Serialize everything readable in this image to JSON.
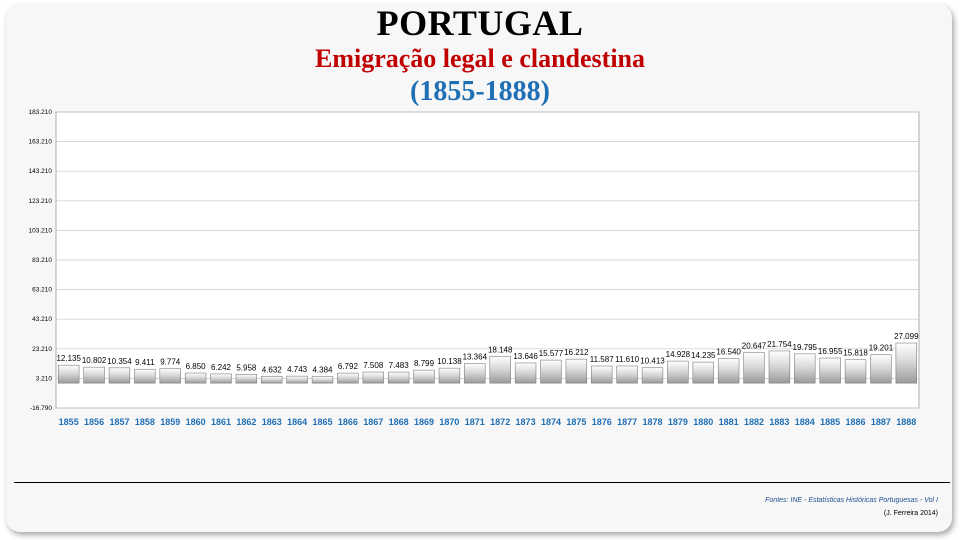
{
  "header": {
    "title": "PORTUGAL",
    "subtitle": "Emigração legal e clandestina",
    "period": "(1855-1888)"
  },
  "footer": {
    "source": "Fontes: INE - Estatísticas Históricas Portuguesas - Vol I",
    "author": "(J. Ferreira 2014)"
  },
  "colors": {
    "title": "#000000",
    "subtitle": "#c00000",
    "period": "#1f6fb5",
    "year_labels": "#1f6fb5",
    "bar_fill": "#d9d9d9",
    "bar_stroke": "#7f7f7f"
  },
  "chart_data": {
    "type": "bar",
    "categories": [
      "1855",
      "1856",
      "1857",
      "1858",
      "1859",
      "1860",
      "1861",
      "1862",
      "1863",
      "1864",
      "1865",
      "1866",
      "1867",
      "1868",
      "1869",
      "1870",
      "1871",
      "1872",
      "1873",
      "1874",
      "1875",
      "1876",
      "1877",
      "1878",
      "1879",
      "1880",
      "1881",
      "1882",
      "1883",
      "1884",
      "1885",
      "1886",
      "1887",
      "1888"
    ],
    "values": [
      12135,
      10802,
      10354,
      9411,
      9774,
      6850,
      6242,
      5958,
      4632,
      4743,
      4384,
      6792,
      7508,
      7483,
      8799,
      10138,
      13364,
      18148,
      13646,
      15577,
      16212,
      11587,
      11610,
      10413,
      14928,
      14235,
      16540,
      20647,
      21754,
      19795,
      16955,
      15818,
      19201,
      27099
    ],
    "value_labels": [
      "12.135",
      "10.802",
      "10.354",
      "9.411",
      "9.774",
      "6.850",
      "6.242",
      "5.958",
      "4.632",
      "4.743",
      "4.384",
      "6.792",
      "7.508",
      "7.483",
      "8.799",
      "10.138",
      "13.364",
      "18.148",
      "13.646",
      "15.577",
      "16.212",
      "11.587",
      "11.610",
      "10.413",
      "14.928",
      "14.235",
      "16.540",
      "20.647",
      "21.754",
      "19.795",
      "16.955",
      "15.818",
      "19.201",
      "27.099"
    ],
    "y_ticks": [
      -16790,
      3210,
      23210,
      43210,
      63210,
      83210,
      103210,
      123210,
      143210,
      163210,
      183210
    ],
    "y_tick_labels": [
      "-16.790",
      "3.210",
      "23.210",
      "43.210",
      "63.210",
      "83.210",
      "103.210",
      "123.210",
      "143.210",
      "163.210",
      "183.210"
    ],
    "ylim": [
      -16790,
      183210
    ],
    "grid": true,
    "legend": "none"
  }
}
